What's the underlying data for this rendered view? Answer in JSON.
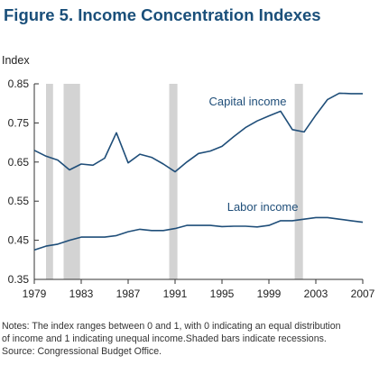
{
  "figure_title": "Figure 5. Income Concentration Indexes",
  "notes": [
    "Notes: The index ranges between 0 and 1, with 0 indicating an equal distribution",
    "of income and 1 indicating unequal income.Shaded bars indicate recessions.",
    "Source: Congressional Budget Office."
  ],
  "colors": {
    "line": "#1f4e79",
    "recession": "#d3d3d3",
    "axis": "#333333",
    "title": "#1a4f7a"
  },
  "chart_data": {
    "type": "line",
    "title": "",
    "ylabel": "Index",
    "xlabel": "",
    "ylim": [
      0.35,
      0.85
    ],
    "xlim": [
      1979,
      2007
    ],
    "grid": false,
    "yticks": [
      0.35,
      0.45,
      0.55,
      0.65,
      0.75,
      0.85
    ],
    "ytick_labels": [
      "0.35",
      "0.45",
      "0.55",
      "0.65",
      "0.75",
      "0.85"
    ],
    "xticks": [
      1979,
      1983,
      1987,
      1991,
      1995,
      1999,
      2003,
      2007
    ],
    "xtick_labels": [
      "1979",
      "1983",
      "1987",
      "1991",
      "1995",
      "1999",
      "2003",
      "2007"
    ],
    "recessions": [
      [
        1980.0,
        1980.6
      ],
      [
        1981.5,
        1982.9
      ],
      [
        1990.5,
        1991.2
      ],
      [
        2001.2,
        2001.9
      ]
    ],
    "series": [
      {
        "name": "Capital income",
        "x": [
          1979,
          1980,
          1981,
          1982,
          1983,
          1984,
          1985,
          1986,
          1987,
          1988,
          1989,
          1990,
          1991,
          1992,
          1993,
          1994,
          1995,
          1996,
          1997,
          1998,
          1999,
          2000,
          2001,
          2002,
          2003,
          2004,
          2005,
          2006,
          2007
        ],
        "values": [
          0.68,
          0.665,
          0.655,
          0.63,
          0.645,
          0.642,
          0.66,
          0.725,
          0.648,
          0.67,
          0.662,
          0.645,
          0.625,
          0.65,
          0.672,
          0.678,
          0.69,
          0.715,
          0.738,
          0.755,
          0.768,
          0.78,
          0.733,
          0.727,
          0.77,
          0.81,
          0.826,
          0.825,
          0.825
        ]
      },
      {
        "name": "Labor income",
        "x": [
          1979,
          1980,
          1981,
          1982,
          1983,
          1984,
          1985,
          1986,
          1987,
          1988,
          1989,
          1990,
          1991,
          1992,
          1993,
          1994,
          1995,
          1996,
          1997,
          1998,
          1999,
          2000,
          2001,
          2002,
          2003,
          2004,
          2005,
          2006,
          2007
        ],
        "values": [
          0.425,
          0.435,
          0.44,
          0.45,
          0.458,
          0.458,
          0.458,
          0.462,
          0.472,
          0.478,
          0.475,
          0.475,
          0.48,
          0.488,
          0.488,
          0.488,
          0.485,
          0.486,
          0.486,
          0.484,
          0.488,
          0.5,
          0.5,
          0.504,
          0.508,
          0.508,
          0.504,
          0.5,
          0.496
        ]
      }
    ]
  }
}
